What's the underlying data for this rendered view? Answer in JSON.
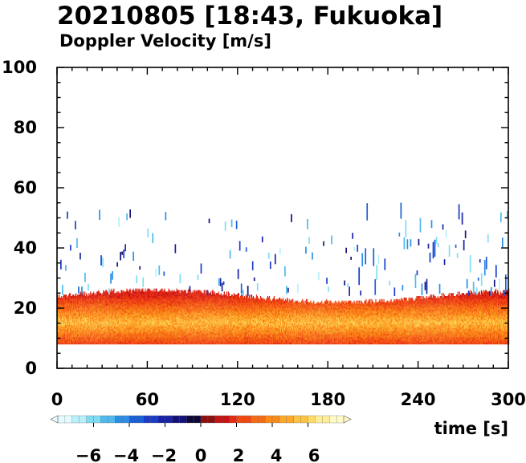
{
  "chart_data": {
    "type": "heatmap",
    "title": "20210805 [18:43, Fukuoka]",
    "subtitle": "Doppler Velocity [m/s]",
    "xlabel": "time [s]",
    "ylabel": "",
    "xlim": [
      0,
      300
    ],
    "ylim": [
      0,
      100
    ],
    "x_ticks": [
      "0",
      "60",
      "120",
      "180",
      "240",
      "300"
    ],
    "y_ticks": [
      "0",
      "20",
      "40",
      "60",
      "80",
      "100"
    ],
    "grid": false,
    "colorbar": {
      "orientation": "horizontal",
      "placement": "bottom-left",
      "tick_labels": [
        "−6",
        "−4",
        "−2",
        "0",
        "2",
        "4",
        "6"
      ],
      "tick_values": [
        -6,
        -4,
        -2,
        0,
        2,
        4,
        6
      ],
      "range": [
        -8,
        8
      ],
      "colors_negative": [
        "#e6fbff",
        "#b7f0fb",
        "#7fdcf2",
        "#4fb8ec",
        "#2a8ee6",
        "#1c5fd6",
        "#1a3cc8",
        "#1a22a6",
        "#14127a",
        "#0d0838"
      ],
      "colors_positive": [
        "#8a1010",
        "#c41414",
        "#e52a14",
        "#f04a12",
        "#f66a14",
        "#fa8a1a",
        "#fca82a",
        "#fdc444",
        "#fedc6a",
        "#feee9a",
        "#fffac8"
      ]
    },
    "layers": [
      {
        "name": "",
        "y_range": [
          8,
          24
        ],
        "value_range": [
          1.5,
          6.5
        ],
        "note_values": "positive"
      },
      {
        "name": "",
        "y_range": [
          24,
          56
        ],
        "value_range": [
          -7,
          -1
        ],
        "note_values": "negative, sparse"
      }
    ]
  }
}
